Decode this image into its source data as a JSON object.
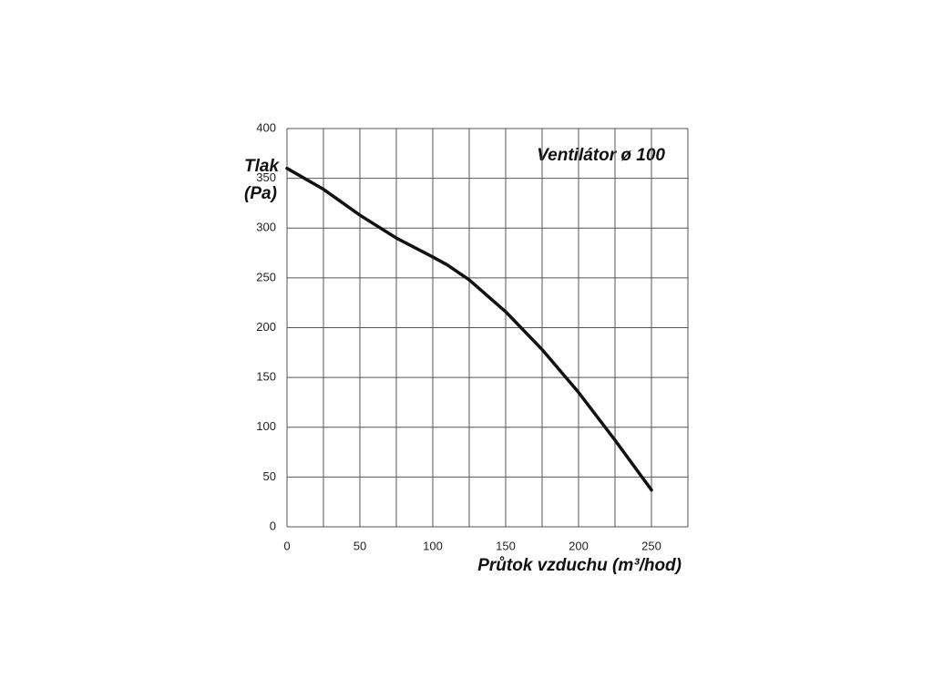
{
  "chart_data": {
    "type": "line",
    "annotation": "Ventilátor ø 100",
    "xlabel": "Průtok vzduchu (m³/hod)",
    "ylabel": [
      "Tlak",
      "(Pa)"
    ],
    "x": [
      0,
      25,
      50,
      75,
      100,
      110,
      125,
      150,
      175,
      200,
      225,
      250
    ],
    "series": [
      {
        "color": "#111111",
        "values": [
          360,
          339,
          313,
          290,
          271,
          263,
          248,
          216,
          178,
          135,
          87,
          37
        ]
      }
    ],
    "xlim": [
      0,
      275
    ],
    "xticks": [
      0,
      50,
      100,
      150,
      200,
      250
    ],
    "x_minor_grid": [
      25,
      75,
      125,
      175,
      225,
      275
    ],
    "ylim": [
      0,
      400
    ],
    "yticks": [
      0,
      50,
      100,
      150,
      200,
      250,
      300,
      350,
      400
    ],
    "grid": true
  }
}
